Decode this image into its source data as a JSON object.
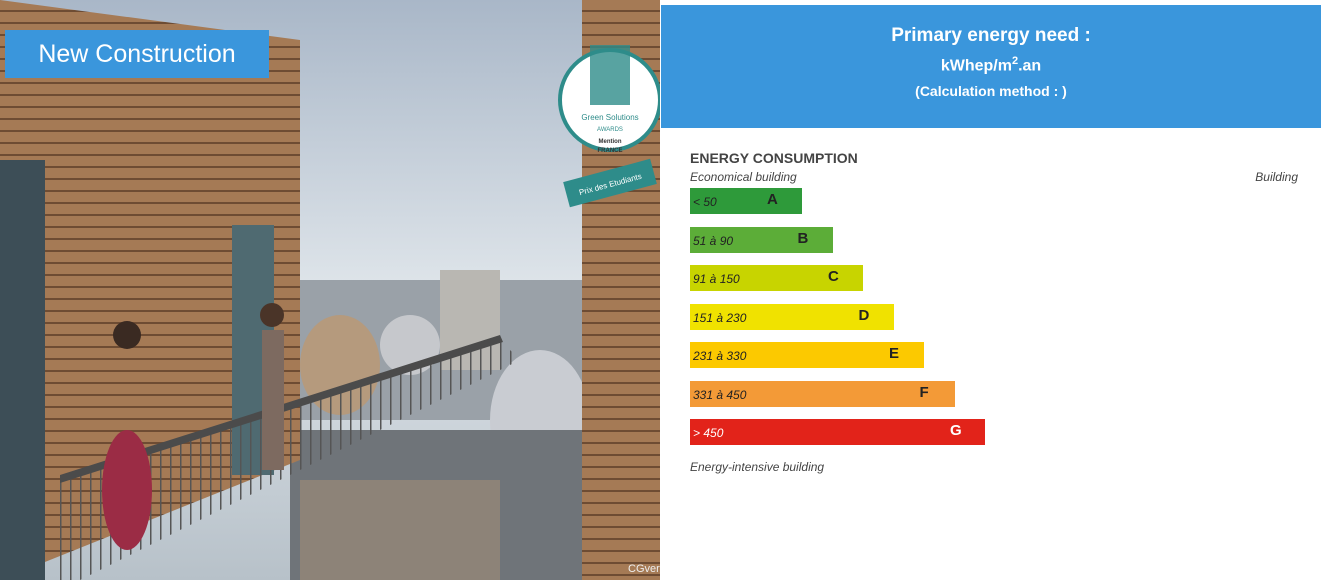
{
  "photo": {
    "badge": "New Construction",
    "award": {
      "line1": "Green Solutions",
      "line2": "AWARDS",
      "line3": "Mention",
      "line4": "FRANCE",
      "ribbon": "Prix des Etudiants"
    },
    "credit": "CGveron"
  },
  "header": {
    "title": "Primary energy need :",
    "unit_main": "kWhep/m",
    "unit_sup": "2",
    "unit_suffix": ".an",
    "method": "(Calculation method : )"
  },
  "energy": {
    "title": "ENERGY CONSUMPTION",
    "top_left": "Economical building",
    "top_right": "Building",
    "bottom": "Energy-intensive building",
    "ratings": [
      {
        "range": "< 50",
        "letter": "A",
        "color": "#2e9a3a"
      },
      {
        "range": "51 à 90",
        "letter": "B",
        "color": "#5cad38"
      },
      {
        "range": "91 à 150",
        "letter": "C",
        "color": "#c8d400"
      },
      {
        "range": "151 à 230",
        "letter": "D",
        "color": "#f0e200"
      },
      {
        "range": "231 à 330",
        "letter": "E",
        "color": "#fcc900"
      },
      {
        "range": "331 à 450",
        "letter": "F",
        "color": "#f39a37"
      },
      {
        "range": "> 450",
        "letter": "G",
        "color": "#e2231a"
      }
    ]
  }
}
